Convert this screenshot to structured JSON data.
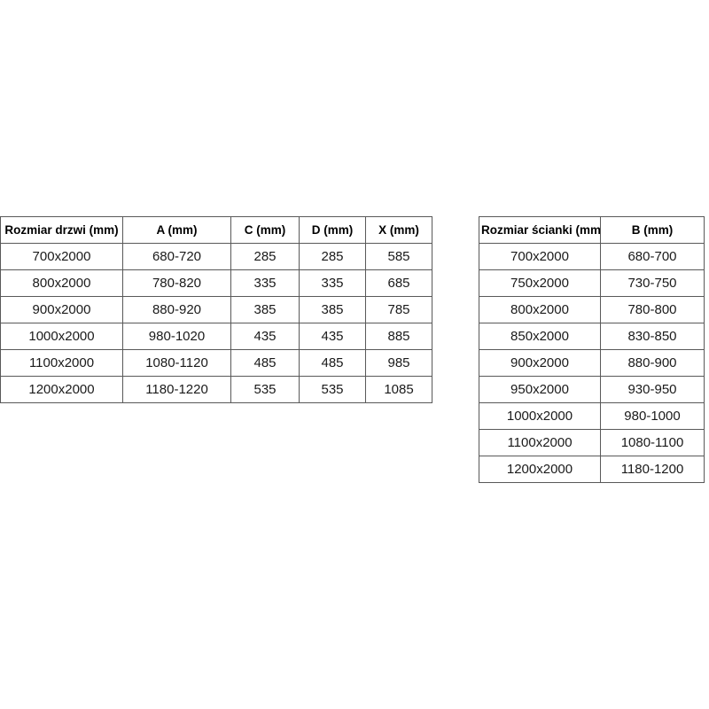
{
  "page": {
    "background": "#ffffff"
  },
  "colors": {
    "border": "#595959",
    "text": "#1a1a1a",
    "header_text": "#000000",
    "background": "#ffffff"
  },
  "tables": [
    {
      "name": "door-sizes",
      "headers": [
        "Rozmiar drzwi (mm)",
        "A (mm)",
        "C (mm)",
        "D (mm)",
        "X (mm)"
      ],
      "rows": [
        [
          "700x2000",
          "680-720",
          "285",
          "285",
          "585"
        ],
        [
          "800x2000",
          "780-820",
          "335",
          "335",
          "685"
        ],
        [
          "900x2000",
          "880-920",
          "385",
          "385",
          "785"
        ],
        [
          "1000x2000",
          "980-1020",
          "435",
          "435",
          "885"
        ],
        [
          "1100x2000",
          "1080-1120",
          "485",
          "485",
          "985"
        ],
        [
          "1200x2000",
          "1180-1220",
          "535",
          "535",
          "1085"
        ]
      ]
    },
    {
      "name": "wall-sizes",
      "headers": [
        "Rozmiar ścianki (mm)",
        "B (mm)"
      ],
      "rows": [
        [
          "700x2000",
          "680-700"
        ],
        [
          "750x2000",
          "730-750"
        ],
        [
          "800x2000",
          "780-800"
        ],
        [
          "850x2000",
          "830-850"
        ],
        [
          "900x2000",
          "880-900"
        ],
        [
          "950x2000",
          "930-950"
        ],
        [
          "1000x2000",
          "980-1000"
        ],
        [
          "1100x2000",
          "1080-1100"
        ],
        [
          "1200x2000",
          "1180-1200"
        ]
      ]
    }
  ]
}
